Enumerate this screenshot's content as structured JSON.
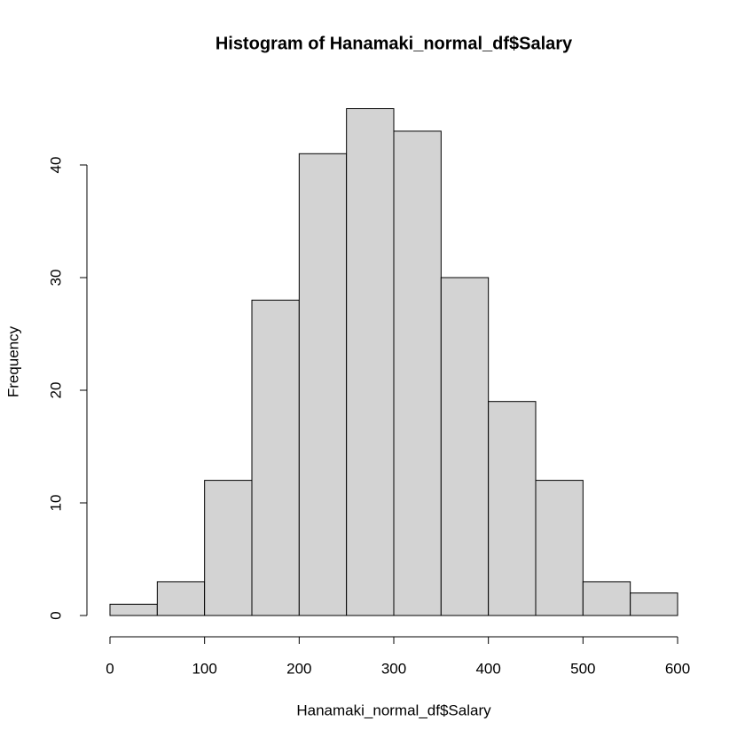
{
  "chart_data": {
    "type": "histogram",
    "title": "Histogram of Hanamaki_normal_df$Salary",
    "x_label": "Hanamaki_normal_df$Salary",
    "y_label": "Frequency",
    "bins": [
      0,
      50,
      100,
      150,
      200,
      250,
      300,
      350,
      400,
      450,
      500,
      550,
      600
    ],
    "values": [
      1,
      3,
      12,
      28,
      41,
      45,
      43,
      30,
      19,
      12,
      3,
      2
    ],
    "color": "#d3d3d3",
    "xlim": [
      0,
      600
    ],
    "xticks": [
      0,
      100,
      200,
      300,
      400,
      500,
      600
    ],
    "ylim": [
      0,
      40
    ],
    "yticks": [
      0,
      10,
      20,
      30,
      40
    ]
  }
}
